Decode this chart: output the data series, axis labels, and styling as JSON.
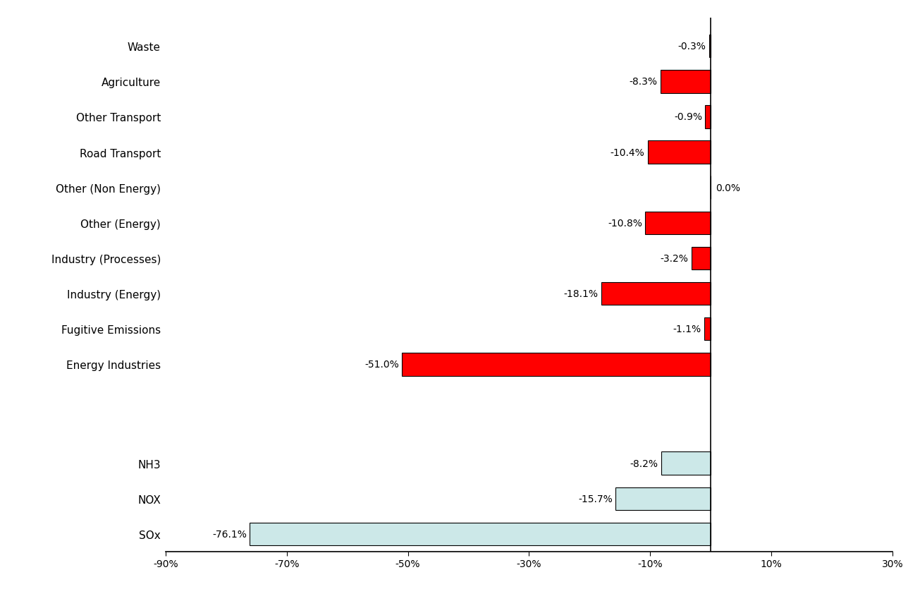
{
  "sectors": [
    "Energy Industries",
    "Fugitive Emissions",
    "Industry (Energy)",
    "Industry (Processes)",
    "Other (Energy)",
    "Other (Non Energy)",
    "Road Transport",
    "Other Transport",
    "Agriculture",
    "Waste"
  ],
  "sector_values": [
    -51.0,
    -1.1,
    -18.1,
    -3.2,
    -10.8,
    0.0,
    -10.4,
    -0.9,
    -8.3,
    -0.3
  ],
  "sector_color": "#ff0000",
  "sector_edge_color": "#000000",
  "pollutants": [
    "SOx",
    "NOX",
    "NH3"
  ],
  "pollutant_values": [
    -76.1,
    -15.7,
    -8.2
  ],
  "pollutant_color": "#cce8e8",
  "pollutant_edge_color": "#000000",
  "xlim": [
    -90,
    30
  ],
  "xticks": [
    -90,
    -70,
    -50,
    -30,
    -10,
    10,
    30
  ],
  "xtick_labels": [
    "-90%",
    "-70%",
    "-50%",
    "-30%",
    "-10%",
    "10%",
    "30%"
  ],
  "background_color": "#ffffff",
  "bar_height": 0.65,
  "font_family": "DejaVu Sans",
  "label_fontsize": 11,
  "tick_fontsize": 11,
  "value_fontsize": 10
}
